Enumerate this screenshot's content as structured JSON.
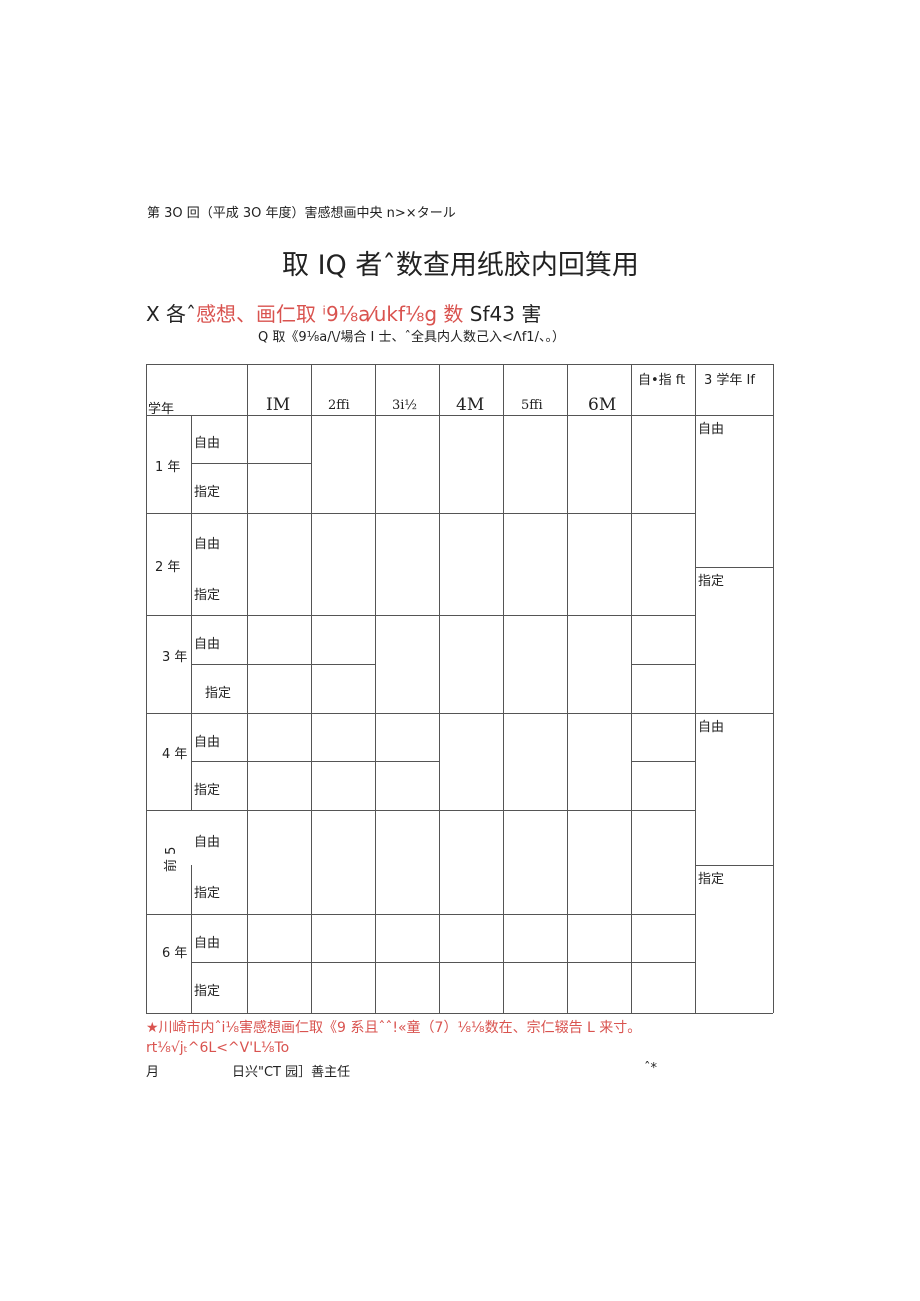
{
  "header_line": "第 3O 回（平成 3O 年度）害感想画中央 n>×タール",
  "title": "取 IQ 者ˆ数查用纸胶内回箕用",
  "subtitle": {
    "prefix": "X 各ˆ",
    "red": "感想、画仁取 ⁱ9⅛a⁄ukf⅛g 数",
    "suffix": " Sf43 害"
  },
  "note": "Q 取《9⅛a/\\/場合 I 士、ˆ全具内人数己入<Λf1/、。）",
  "table": {
    "headers": [
      "学年",
      "IM",
      "2ffi",
      "3i½",
      "4M",
      "5ffi",
      "6M",
      "自•指 ft",
      "3 学年 If"
    ],
    "grades": [
      "1 年",
      "2 年",
      "3 年",
      "4 年",
      "前 5",
      "6 年"
    ],
    "free": "自由",
    "designated": "指定"
  },
  "footnote_red_1": "★川崎市内ˆi⅛害感想画仁取《9 系且ˆˆ!«童（7）⅛⅛数在、宗仁辍告 L 来寸。",
  "footnote_red_2": "rt⅛√jₜ^6L<^V'L⅛To",
  "footer": {
    "month": "月",
    "day_line": "日兴\"CT 园］善主任",
    "mark": "ˆ*"
  }
}
